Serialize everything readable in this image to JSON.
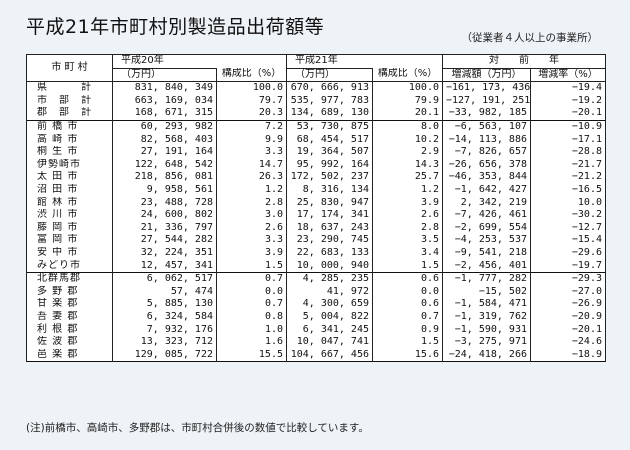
{
  "title": "平成21年市町村別製造品出荷額等",
  "subtitle": "（従業者４人以上の事業所）",
  "header": {
    "municipality": "市 町 村",
    "h20": "平成20年",
    "h21": "平成21年",
    "yoy": "対　　前　　年",
    "amount_unit": "（万円）",
    "share": "構成比（%）",
    "diff": "増減額（万円）",
    "rate": "増減率（%）"
  },
  "groups": [
    {
      "rows": [
        {
          "name": "県　　　計",
          "a20": "831, 840, 349",
          "s20": "100.0",
          "a21": "670, 666, 913",
          "s21": "100.0",
          "diff": "−161, 173, 436",
          "rate": "−19.4"
        },
        {
          "name": "市　部　計",
          "a20": "663, 169, 034",
          "s20": "79.7",
          "a21": "535, 977, 783",
          "s21": "79.9",
          "diff": "−127, 191, 251",
          "rate": "−19.2"
        },
        {
          "name": "郡　部　計",
          "a20": "168, 671, 315",
          "s20": "20.3",
          "a21": "134, 689, 130",
          "s21": "20.1",
          "diff": "−33, 982, 185",
          "rate": "−20.1"
        }
      ]
    },
    {
      "rows": [
        {
          "name": "前 橋 市",
          "a20": "60, 293, 982",
          "s20": "7.2",
          "a21": "53, 730, 875",
          "s21": "8.0",
          "diff": "−6, 563, 107",
          "rate": "−10.9"
        },
        {
          "name": "高 崎 市",
          "a20": "82, 568, 403",
          "s20": "9.9",
          "a21": "68, 454, 517",
          "s21": "10.2",
          "diff": "−14, 113, 886",
          "rate": "−17.1"
        },
        {
          "name": "桐 生 市",
          "a20": "27, 191, 164",
          "s20": "3.3",
          "a21": "19, 364, 507",
          "s21": "2.9",
          "diff": "−7, 826, 657",
          "rate": "−28.8"
        },
        {
          "name": "伊勢崎市",
          "a20": "122, 648, 542",
          "s20": "14.7",
          "a21": "95, 992, 164",
          "s21": "14.3",
          "diff": "−26, 656, 378",
          "rate": "−21.7"
        },
        {
          "name": "太 田 市",
          "a20": "218, 856, 081",
          "s20": "26.3",
          "a21": "172, 502, 237",
          "s21": "25.7",
          "diff": "−46, 353, 844",
          "rate": "−21.2"
        },
        {
          "name": "沼 田 市",
          "a20": "9, 958, 561",
          "s20": "1.2",
          "a21": "8, 316, 134",
          "s21": "1.2",
          "diff": "−1, 642, 427",
          "rate": "−16.5"
        },
        {
          "name": "館 林 市",
          "a20": "23, 488, 728",
          "s20": "2.8",
          "a21": "25, 830, 947",
          "s21": "3.9",
          "diff": "2, 342, 219",
          "rate": "10.0"
        },
        {
          "name": "渋 川 市",
          "a20": "24, 600, 802",
          "s20": "3.0",
          "a21": "17, 174, 341",
          "s21": "2.6",
          "diff": "−7, 426, 461",
          "rate": "−30.2"
        },
        {
          "name": "藤 岡 市",
          "a20": "21, 336, 797",
          "s20": "2.6",
          "a21": "18, 637, 243",
          "s21": "2.8",
          "diff": "−2, 699, 554",
          "rate": "−12.7"
        },
        {
          "name": "富 岡 市",
          "a20": "27, 544, 282",
          "s20": "3.3",
          "a21": "23, 290, 745",
          "s21": "3.5",
          "diff": "−4, 253, 537",
          "rate": "−15.4"
        },
        {
          "name": "安 中 市",
          "a20": "32, 224, 351",
          "s20": "3.9",
          "a21": "22, 683, 133",
          "s21": "3.4",
          "diff": "−9, 541, 218",
          "rate": "−29.6"
        },
        {
          "name": "みどり市",
          "a20": "12, 457, 341",
          "s20": "1.5",
          "a21": "10, 000, 940",
          "s21": "1.5",
          "diff": "−2, 456, 401",
          "rate": "−19.7"
        }
      ]
    },
    {
      "rows": [
        {
          "name": "北群馬郡",
          "a20": "6, 062, 517",
          "s20": "0.7",
          "a21": "4, 285, 235",
          "s21": "0.6",
          "diff": "−1, 777, 282",
          "rate": "−29.3"
        },
        {
          "name": "多 野 郡",
          "a20": "57, 474",
          "s20": "0.0",
          "a21": "41, 972",
          "s21": "0.0",
          "diff": "−15, 502",
          "rate": "−27.0"
        },
        {
          "name": "甘 楽 郡",
          "a20": "5, 885, 130",
          "s20": "0.7",
          "a21": "4, 300, 659",
          "s21": "0.6",
          "diff": "−1, 584, 471",
          "rate": "−26.9"
        },
        {
          "name": "吾 妻 郡",
          "a20": "6, 324, 584",
          "s20": "0.8",
          "a21": "5, 004, 822",
          "s21": "0.7",
          "diff": "−1, 319, 762",
          "rate": "−20.9"
        },
        {
          "name": "利 根 郡",
          "a20": "7, 932, 176",
          "s20": "1.0",
          "a21": "6, 341, 245",
          "s21": "0.9",
          "diff": "−1, 590, 931",
          "rate": "−20.1"
        },
        {
          "name": "佐 波 郡",
          "a20": "13, 323, 712",
          "s20": "1.6",
          "a21": "10, 047, 741",
          "s21": "1.5",
          "diff": "−3, 275, 971",
          "rate": "−24.6"
        },
        {
          "name": "邑 楽 郡",
          "a20": "129, 085, 722",
          "s20": "15.5",
          "a21": "104, 667, 456",
          "s21": "15.6",
          "diff": "−24, 418, 266",
          "rate": "−18.9"
        }
      ]
    }
  ],
  "note": "(注)前橋市、高崎市、多野郡は、市町村合併後の数値で比較しています。"
}
